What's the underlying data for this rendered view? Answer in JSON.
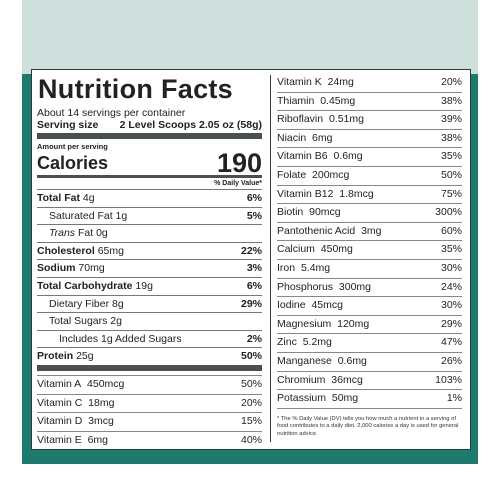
{
  "title": "Nutrition Facts",
  "servings_per_container": "About 14 servings per container",
  "serving_size_label": "Serving size",
  "serving_size_value": "2 Level Scoops 2.05 oz (58g)",
  "amount_per_serving": "Amount per serving",
  "calories_label": "Calories",
  "calories_value": "190",
  "dv_header": "% Daily Value*",
  "macros": [
    {
      "label": "Total Fat",
      "amount": "4g",
      "dv": "6%"
    },
    {
      "label": "Saturated Fat",
      "amount": "1g",
      "dv": "5%"
    },
    {
      "label": "Trans",
      "label_suffix": " Fat",
      "amount": "0g",
      "dv": ""
    },
    {
      "label": "Cholesterol",
      "amount": "65mg",
      "dv": "22%"
    },
    {
      "label": "Sodium",
      "amount": "70mg",
      "dv": "3%"
    },
    {
      "label": "Total Carbohydrate",
      "amount": "19g",
      "dv": "6%"
    },
    {
      "label": "Dietary Fiber",
      "amount": "8g",
      "dv": "29%"
    },
    {
      "label": "Total Sugars",
      "amount": "2g",
      "dv": ""
    },
    {
      "label": "Includes 1g Added Sugars",
      "amount": "",
      "dv": "2%"
    },
    {
      "label": "Protein",
      "amount": "25g",
      "dv": "50%"
    }
  ],
  "vitamins_left": [
    {
      "label": "Vitamin A",
      "amount": "450mcg",
      "dv": "50%"
    },
    {
      "label": "Vitamin C",
      "amount": "18mg",
      "dv": "20%"
    },
    {
      "label": "Vitamin D",
      "amount": "3mcg",
      "dv": "15%"
    },
    {
      "label": "Vitamin E",
      "amount": "6mg",
      "dv": "40%"
    }
  ],
  "vitamins_right": [
    {
      "label": "Vitamin K",
      "amount": "24mg",
      "dv": "20%"
    },
    {
      "label": "Thiamin",
      "amount": "0.45mg",
      "dv": "38%"
    },
    {
      "label": "Riboflavin",
      "amount": "0.51mg",
      "dv": "39%"
    },
    {
      "label": "Niacin",
      "amount": "6mg",
      "dv": "38%"
    },
    {
      "label": "Vitamin B6",
      "amount": "0.6mg",
      "dv": "35%"
    },
    {
      "label": "Folate",
      "amount": "200mcg",
      "dv": "50%"
    },
    {
      "label": "Vitamin B12",
      "amount": "1.8mcg",
      "dv": "75%"
    },
    {
      "label": "Biotin",
      "amount": "90mcg",
      "dv": "300%"
    },
    {
      "label": "Pantothenic Acid",
      "amount": "3mg",
      "dv": "60%"
    },
    {
      "label": "Calcium",
      "amount": "450mg",
      "dv": "35%"
    },
    {
      "label": "Iron",
      "amount": "5.4mg",
      "dv": "30%"
    },
    {
      "label": "Phosphorus",
      "amount": "300mg",
      "dv": "24%"
    },
    {
      "label": "Iodine",
      "amount": "45mcg",
      "dv": "30%"
    },
    {
      "label": "Magnesium",
      "amount": "120mg",
      "dv": "29%"
    },
    {
      "label": "Zinc",
      "amount": "5.2mg",
      "dv": "47%"
    },
    {
      "label": "Manganese",
      "amount": "0.6mg",
      "dv": "26%"
    },
    {
      "label": "Chromium",
      "amount": "36mcg",
      "dv": "103%"
    },
    {
      "label": "Potassium",
      "amount": "50mg",
      "dv": "1%"
    }
  ],
  "footnote": "* The % Daily Value (DV) tells you how much a nutrient in a serving of food contributes to a daily diet. 2,000 calories a day is used for general nutrition advice.",
  "colors": {
    "teal": "#1d7a6c",
    "mint": "#cfdfdb",
    "bar": "#4a4f4f"
  }
}
